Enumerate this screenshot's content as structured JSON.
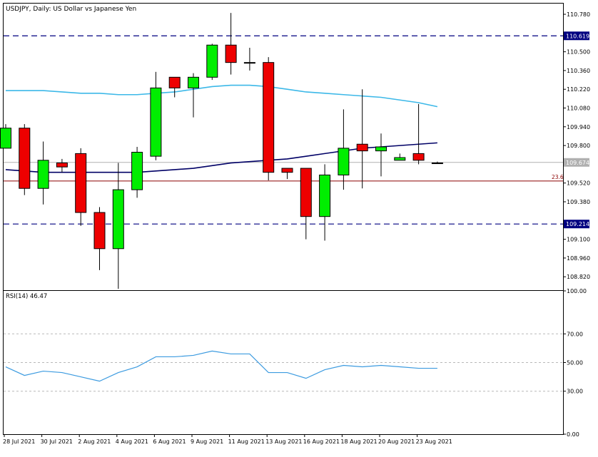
{
  "header": {
    "title": "USDJPY, Daily:  US Dollar vs Japanese Yen",
    "rsi_label": "RSI(14) 46.47"
  },
  "colors": {
    "bull": "#00ee00",
    "bear": "#ee0000",
    "ma_fast": "#3cb8e8",
    "ma_slow": "#000066",
    "hline": "#000080",
    "fib": "#8b0000",
    "current": "#b0b0b0",
    "rsi": "#3c9be0"
  },
  "chart_data": [
    {
      "type": "candlestick",
      "title": "USDJPY, Daily:  US Dollar vs Japanese Yen",
      "ylim": [
        108.72,
        110.86
      ],
      "y_ticks": [
        "110.780",
        "110.500",
        "110.360",
        "110.220",
        "110.080",
        "109.940",
        "109.800",
        "109.520",
        "109.380",
        "109.100",
        "108.960",
        "108.820"
      ],
      "x_labels": [
        "28 Jul 2021",
        "30 Jul 2021",
        "2 Aug 2021",
        "4 Aug 2021",
        "6 Aug 2021",
        "9 Aug 2021",
        "11 Aug 2021",
        "13 Aug 2021",
        "16 Aug 2021",
        "18 Aug 2021",
        "20 Aug 2021",
        "23 Aug 2021"
      ],
      "candles": [
        {
          "open": 109.78,
          "high": 109.96,
          "low": 109.78,
          "close": 109.93
        },
        {
          "open": 109.93,
          "high": 109.96,
          "low": 109.43,
          "close": 109.48
        },
        {
          "open": 109.48,
          "high": 109.83,
          "low": 109.36,
          "close": 109.69
        },
        {
          "open": 109.67,
          "high": 109.7,
          "low": 109.6,
          "close": 109.64
        },
        {
          "open": 109.74,
          "high": 109.78,
          "low": 109.2,
          "close": 109.3
        },
        {
          "open": 109.3,
          "high": 109.34,
          "low": 108.87,
          "close": 109.03
        },
        {
          "open": 109.03,
          "high": 109.67,
          "low": 108.73,
          "close": 109.47
        },
        {
          "open": 109.47,
          "high": 109.79,
          "low": 109.41,
          "close": 109.75
        },
        {
          "open": 109.72,
          "high": 110.35,
          "low": 109.69,
          "close": 110.23
        },
        {
          "open": 110.31,
          "high": 110.31,
          "low": 110.16,
          "close": 110.23
        },
        {
          "open": 110.23,
          "high": 110.34,
          "low": 110.01,
          "close": 110.31
        },
        {
          "open": 110.31,
          "high": 110.56,
          "low": 110.29,
          "close": 110.55
        },
        {
          "open": 110.55,
          "high": 110.79,
          "low": 110.33,
          "close": 110.42
        },
        {
          "open": 110.42,
          "high": 110.53,
          "low": 110.36,
          "close": 110.42
        },
        {
          "open": 110.42,
          "high": 110.46,
          "low": 109.54,
          "close": 109.6
        },
        {
          "open": 109.63,
          "high": 109.63,
          "low": 109.55,
          "close": 109.6
        },
        {
          "open": 109.63,
          "high": 109.63,
          "low": 109.1,
          "close": 109.27
        },
        {
          "open": 109.27,
          "high": 109.66,
          "low": 109.09,
          "close": 109.58
        },
        {
          "open": 109.58,
          "high": 110.07,
          "low": 109.47,
          "close": 109.78
        },
        {
          "open": 109.81,
          "high": 110.22,
          "low": 109.48,
          "close": 109.76
        },
        {
          "open": 109.76,
          "high": 109.89,
          "low": 109.57,
          "close": 109.79
        },
        {
          "open": 109.69,
          "high": 109.74,
          "low": 109.69,
          "close": 109.71
        },
        {
          "open": 109.74,
          "high": 110.11,
          "low": 109.66,
          "close": 109.69
        },
        {
          "open": 109.67,
          "high": 109.68,
          "low": 109.67,
          "close": 109.67
        }
      ],
      "ma_fast": [
        110.21,
        110.21,
        110.21,
        110.2,
        110.19,
        110.19,
        110.18,
        110.18,
        110.19,
        110.2,
        110.22,
        110.24,
        110.25,
        110.25,
        110.24,
        110.22,
        110.2,
        110.19,
        110.18,
        110.17,
        110.16,
        110.14,
        110.12,
        110.09
      ],
      "ma_slow": [
        109.62,
        109.61,
        109.6,
        109.6,
        109.6,
        109.6,
        109.6,
        109.6,
        109.61,
        109.62,
        109.63,
        109.65,
        109.67,
        109.68,
        109.69,
        109.7,
        109.72,
        109.74,
        109.76,
        109.78,
        109.79,
        109.8,
        109.81,
        109.82
      ],
      "hlines": [
        {
          "price": 110.619,
          "label": "110.619"
        },
        {
          "price": 109.214,
          "label": "109.214"
        }
      ],
      "fib_line": {
        "price": 109.535,
        "label": "23.6"
      },
      "current_price": {
        "price": 109.674,
        "label": "109.674"
      }
    },
    {
      "type": "line",
      "title": "RSI(14) 46.47",
      "ylim": [
        0,
        100
      ],
      "y_ticks": [
        "100.00",
        "70.00",
        "50.00",
        "30.00",
        "0.00"
      ],
      "levels": [
        70,
        50,
        30
      ],
      "values": [
        47,
        41,
        44,
        43,
        40,
        37,
        43,
        47,
        54,
        54,
        55,
        58,
        56,
        56,
        43,
        43,
        39,
        45,
        48,
        47,
        48,
        47,
        46,
        46
      ]
    }
  ]
}
